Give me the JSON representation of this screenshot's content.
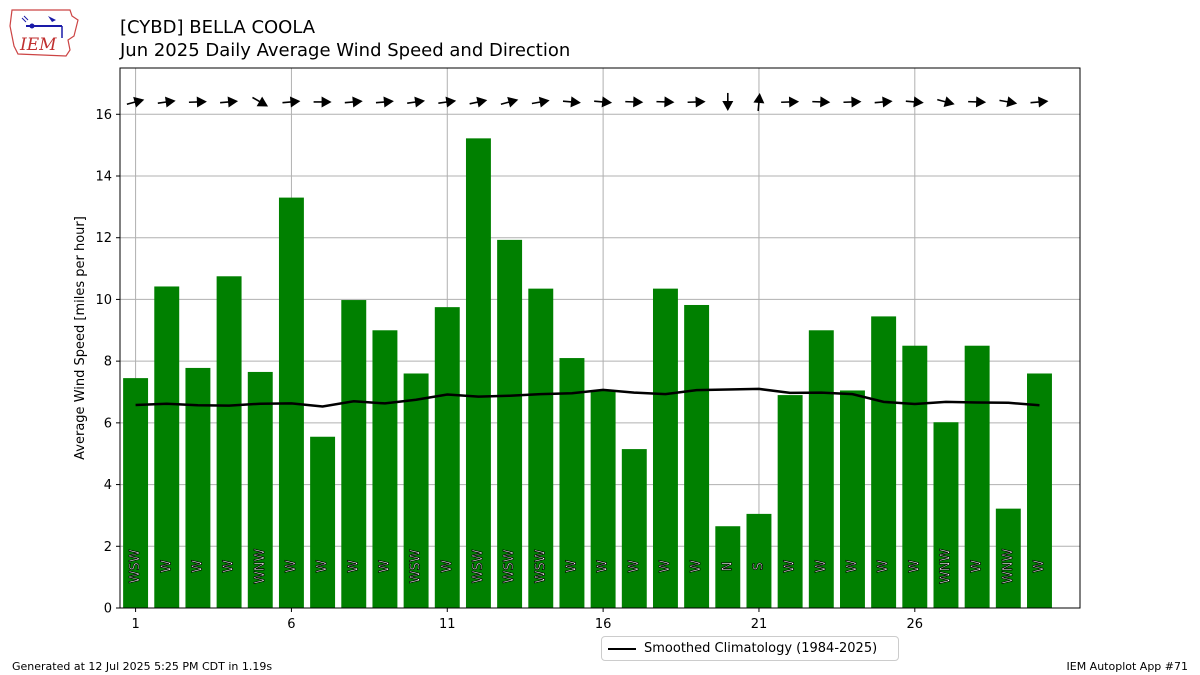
{
  "header": {
    "logo_text": "IEM",
    "title_line1": "[CYBD] BELLA COOLA",
    "title_line2": "Jun 2025 Daily Average Wind Speed and Direction"
  },
  "footer": {
    "generated": "Generated at 12 Jul 2025 5:25 PM CDT in 1.19s",
    "app": "IEM Autoplot App #71"
  },
  "colors": {
    "bars": "#008000",
    "climatology": "#000000",
    "arrows": "#000000",
    "grid": "#b0b0b0"
  },
  "chart_data": {
    "type": "bar",
    "ylabel": "Average Wind Speed [miles per hour]",
    "xlabel": "",
    "x_ticks": [
      1,
      6,
      11,
      16,
      21,
      26
    ],
    "y_ticks": [
      0,
      2,
      4,
      6,
      8,
      10,
      12,
      14,
      16
    ],
    "xlim": [
      0.5,
      31.3
    ],
    "ylim": [
      0,
      17.5
    ],
    "grid": true,
    "legend_position": "bottom-center",
    "days": [
      1,
      2,
      3,
      4,
      5,
      6,
      7,
      8,
      9,
      10,
      11,
      12,
      13,
      14,
      15,
      16,
      17,
      18,
      19,
      20,
      21,
      22,
      23,
      24,
      25,
      26,
      27,
      28,
      29,
      30
    ],
    "speed": [
      7.45,
      10.42,
      7.78,
      10.75,
      7.65,
      13.3,
      5.55,
      9.98,
      9.0,
      7.6,
      9.75,
      15.22,
      11.93,
      10.35,
      8.1,
      7.05,
      5.15,
      10.35,
      9.82,
      2.65,
      3.05,
      6.9,
      9.0,
      7.05,
      9.45,
      8.5,
      6.02,
      8.5,
      3.22,
      7.6
    ],
    "direction_text": [
      "WSW",
      "W",
      "W",
      "W",
      "WNW",
      "W",
      "W",
      "W",
      "W",
      "WSW",
      "W",
      "WSW",
      "WSW",
      "WSW",
      "W",
      "W",
      "W",
      "W",
      "W",
      "N",
      "S",
      "W",
      "W",
      "W",
      "W",
      "W",
      "WNW",
      "W",
      "WNW",
      "W"
    ],
    "direction_deg": [
      255,
      262,
      268,
      265,
      300,
      265,
      270,
      265,
      265,
      262,
      262,
      258,
      255,
      260,
      275,
      275,
      272,
      272,
      268,
      0,
      185,
      268,
      272,
      268,
      265,
      275,
      285,
      272,
      280,
      265
    ],
    "climatology": {
      "name": "Smoothed Climatology (1984-2025)",
      "values": [
        6.58,
        6.62,
        6.57,
        6.56,
        6.62,
        6.63,
        6.53,
        6.7,
        6.63,
        6.75,
        6.92,
        6.85,
        6.88,
        6.93,
        6.96,
        7.07,
        6.98,
        6.93,
        7.06,
        7.08,
        7.1,
        6.97,
        6.98,
        6.93,
        6.68,
        6.61,
        6.68,
        6.66,
        6.65,
        6.57
      ]
    }
  }
}
